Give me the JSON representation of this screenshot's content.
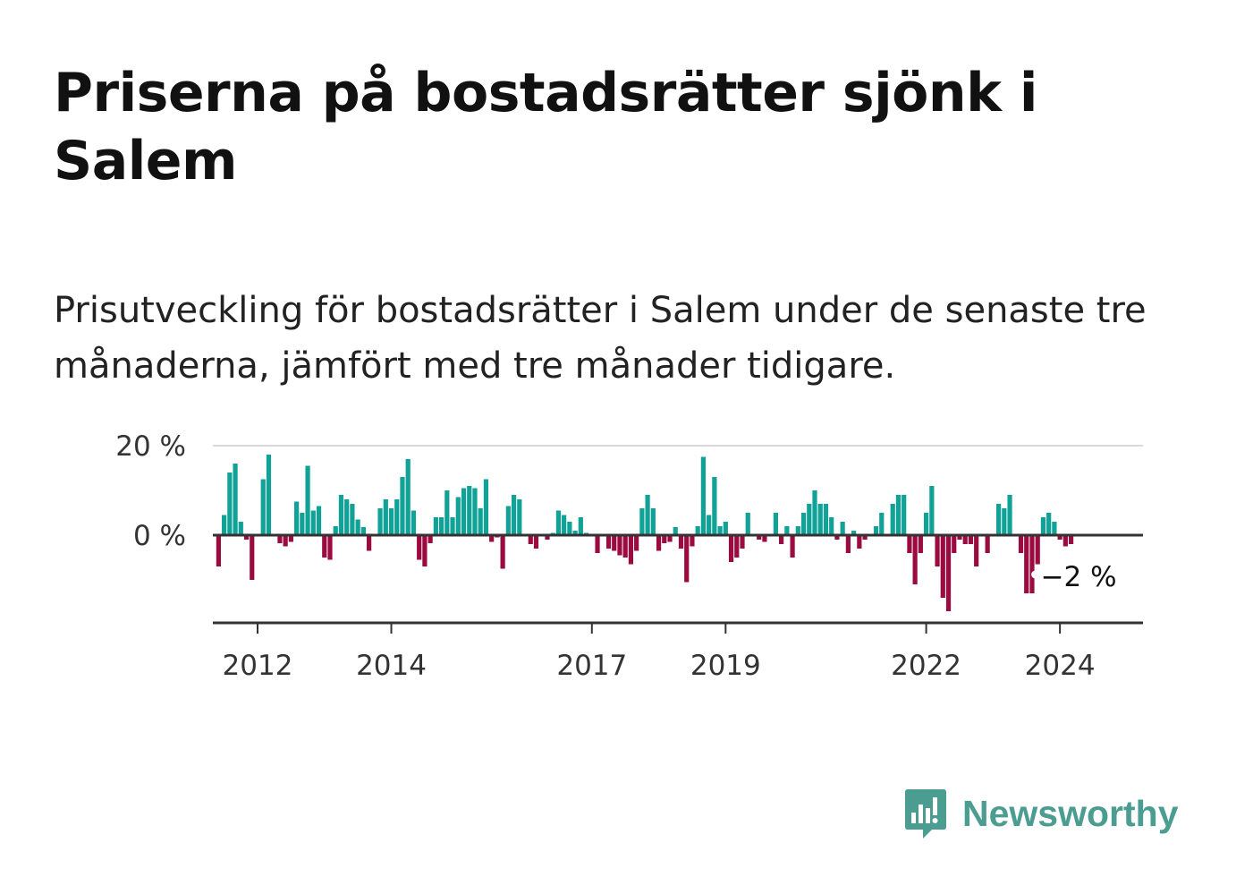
{
  "title": "Priserna på bostadsrätter sjönk i Salem",
  "subtitle": "Prisutveckling för bostadsrätter i Salem under de senaste tre månaderna, jämfört med tre månader tidigare.",
  "brand": {
    "name": "Newsworthy"
  },
  "colors": {
    "positive": "#10a197",
    "negative": "#9b0b3f",
    "grid": "#d9d9d9",
    "axis": "#333333"
  },
  "chart_data": {
    "type": "bar",
    "ylim": [
      -20,
      20
    ],
    "yticks": [
      {
        "value": 20,
        "label": "20 %"
      },
      {
        "value": 0,
        "label": "0 %"
      }
    ],
    "xticks": [
      {
        "value": 2012,
        "label": "2012"
      },
      {
        "value": 2014,
        "label": "2014"
      },
      {
        "value": 2017,
        "label": "2017"
      },
      {
        "value": 2019,
        "label": "2019"
      },
      {
        "value": 2022,
        "label": "2022"
      },
      {
        "value": 2024,
        "label": "2024"
      }
    ],
    "x_start": {
      "year": 2011,
      "month": 6
    },
    "end_label": "−2 %",
    "values": [
      -7,
      4.5,
      14,
      16,
      3,
      -1,
      -10,
      0,
      12.5,
      18,
      0,
      -1.8,
      -2.5,
      -1.5,
      7.5,
      5,
      15.5,
      5.5,
      6.5,
      -5,
      -5.5,
      2,
      9,
      8,
      7,
      3.5,
      1.8,
      -3.5,
      0,
      6,
      8,
      6,
      8,
      13,
      17,
      5.5,
      -5.5,
      -7,
      -1.8,
      4,
      4,
      10,
      4,
      8.5,
      10.5,
      11,
      10.5,
      6,
      12.5,
      -1.5,
      -0.5,
      -7.5,
      6.5,
      9,
      8,
      0,
      -2,
      -3,
      0,
      -1,
      0.5,
      5.5,
      4.5,
      3,
      1,
      4,
      0.5,
      0,
      -4,
      0,
      -3,
      -3.5,
      -4.5,
      -5,
      -6.5,
      -3.5,
      6,
      9,
      6,
      -3.5,
      -1.8,
      -1.5,
      1.8,
      -3,
      -10.5,
      -2.5,
      2,
      17.5,
      4.5,
      13,
      2,
      3,
      -6,
      -5,
      -3,
      5,
      0,
      -1,
      -1.5,
      0,
      5,
      -2,
      2,
      -5,
      2,
      5,
      7,
      10,
      7,
      7,
      4,
      -1,
      3,
      -4,
      1,
      -3,
      -1,
      0,
      2,
      5,
      0,
      7,
      9,
      9,
      -4,
      -11,
      -4,
      5,
      11,
      -7,
      -14,
      -17,
      -4,
      -1,
      -2,
      -2,
      -7,
      0,
      -4,
      0,
      7,
      6,
      9,
      0,
      -4,
      -13,
      -13,
      -6.5,
      4,
      5,
      3,
      -1,
      -2.5,
      -2
    ]
  }
}
